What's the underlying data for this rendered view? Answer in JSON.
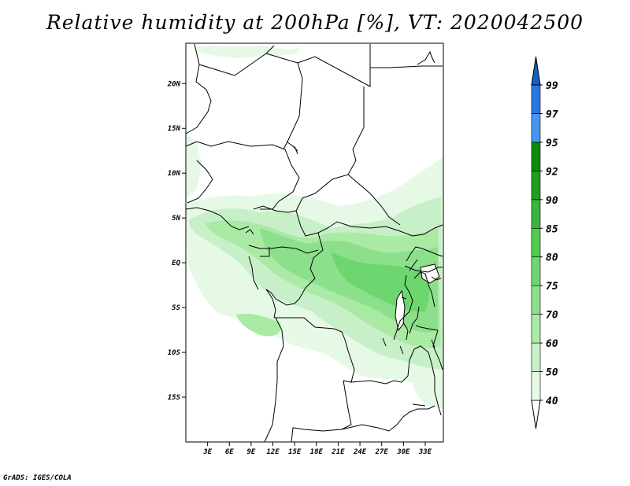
{
  "title": "Relative humidity at 200hPa [%], VT: 2020042500",
  "credit": "GrADS: IGES/COLA",
  "map": {
    "lon_range": [
      0,
      35.5
    ],
    "lat_range": [
      -20,
      24.5
    ],
    "lat_ticks": [
      {
        "value": 20,
        "label": "20N"
      },
      {
        "value": 15,
        "label": "15N"
      },
      {
        "value": 10,
        "label": "10N"
      },
      {
        "value": 5,
        "label": "5N"
      },
      {
        "value": 0,
        "label": "EQ"
      },
      {
        "value": -5,
        "label": "5S"
      },
      {
        "value": -10,
        "label": "10S"
      },
      {
        "value": -15,
        "label": "15S"
      }
    ],
    "lon_ticks": [
      {
        "value": 3,
        "label": "3E"
      },
      {
        "value": 6,
        "label": "6E"
      },
      {
        "value": 9,
        "label": "9E"
      },
      {
        "value": 12,
        "label": "12E"
      },
      {
        "value": 15,
        "label": "15E"
      },
      {
        "value": 18,
        "label": "18E"
      },
      {
        "value": 21,
        "label": "21E"
      },
      {
        "value": 24,
        "label": "24E"
      },
      {
        "value": 27,
        "label": "27E"
      },
      {
        "value": 30,
        "label": "30E"
      },
      {
        "value": 33,
        "label": "33E"
      }
    ]
  },
  "colorbar": {
    "levels": [
      "40",
      "50",
      "60",
      "70",
      "75",
      "80",
      "85",
      "90",
      "92",
      "95",
      "97",
      "99"
    ],
    "colors": [
      "#ffffff",
      "#e6f9e6",
      "#c8f0c8",
      "#aaeaa5",
      "#8ce08c",
      "#6ed66e",
      "#50cc50",
      "#3cb43c",
      "#1e9e1e",
      "#0a8c0a",
      "#4696f0",
      "#2878e6",
      "#1460c8"
    ]
  }
}
